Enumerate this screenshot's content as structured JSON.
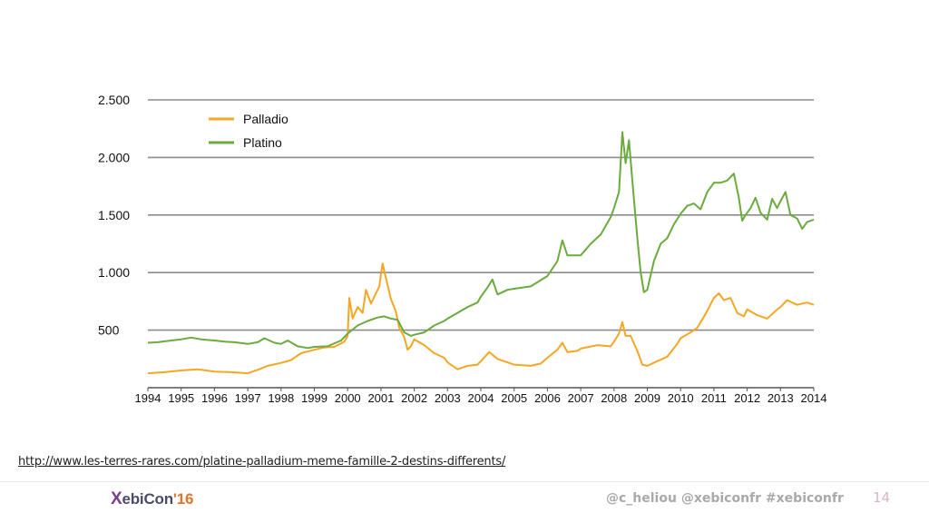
{
  "chart_data": {
    "type": "line",
    "yticks": [
      "2.500",
      "2.000",
      "1.500",
      "1.000",
      "500"
    ],
    "ytick_values": [
      2500,
      2000,
      1500,
      1000,
      500
    ],
    "ylim": [
      0,
      2500
    ],
    "xlim": [
      1994,
      2014
    ],
    "xticks": [
      "1994",
      "1995",
      "1996",
      "1997",
      "1998",
      "1999",
      "2000",
      "2001",
      "2002",
      "2003",
      "2004",
      "2005",
      "2006",
      "2007",
      "2008",
      "2009",
      "2010",
      "2011",
      "2012",
      "2013",
      "2014"
    ],
    "grid": true,
    "legend_position": "top-left",
    "series": [
      {
        "name": "Palladio",
        "color": "#f5a623",
        "points": [
          [
            1994.0,
            125
          ],
          [
            1994.5,
            135
          ],
          [
            1995.0,
            150
          ],
          [
            1995.5,
            160
          ],
          [
            1996.0,
            140
          ],
          [
            1996.5,
            135
          ],
          [
            1997.0,
            125
          ],
          [
            1997.3,
            155
          ],
          [
            1997.6,
            190
          ],
          [
            1998.0,
            215
          ],
          [
            1998.3,
            240
          ],
          [
            1998.6,
            300
          ],
          [
            1999.0,
            330
          ],
          [
            1999.3,
            350
          ],
          [
            1999.6,
            355
          ],
          [
            1999.9,
            400
          ],
          [
            2000.0,
            450
          ],
          [
            2000.05,
            780
          ],
          [
            2000.15,
            600
          ],
          [
            2000.3,
            700
          ],
          [
            2000.45,
            650
          ],
          [
            2000.55,
            850
          ],
          [
            2000.7,
            730
          ],
          [
            2000.85,
            820
          ],
          [
            2000.95,
            880
          ],
          [
            2001.05,
            1080
          ],
          [
            2001.15,
            950
          ],
          [
            2001.3,
            770
          ],
          [
            2001.45,
            660
          ],
          [
            2001.55,
            520
          ],
          [
            2001.7,
            440
          ],
          [
            2001.8,
            330
          ],
          [
            2001.9,
            360
          ],
          [
            2002.0,
            420
          ],
          [
            2002.3,
            370
          ],
          [
            2002.6,
            300
          ],
          [
            2002.9,
            260
          ],
          [
            2003.0,
            220
          ],
          [
            2003.3,
            160
          ],
          [
            2003.6,
            190
          ],
          [
            2003.9,
            200
          ],
          [
            2004.0,
            230
          ],
          [
            2004.25,
            310
          ],
          [
            2004.5,
            250
          ],
          [
            2004.8,
            220
          ],
          [
            2005.0,
            200
          ],
          [
            2005.5,
            190
          ],
          [
            2005.8,
            210
          ],
          [
            2006.0,
            260
          ],
          [
            2006.3,
            330
          ],
          [
            2006.45,
            390
          ],
          [
            2006.6,
            310
          ],
          [
            2006.9,
            320
          ],
          [
            2007.0,
            340
          ],
          [
            2007.5,
            370
          ],
          [
            2007.9,
            360
          ],
          [
            2008.0,
            400
          ],
          [
            2008.15,
            470
          ],
          [
            2008.25,
            570
          ],
          [
            2008.35,
            450
          ],
          [
            2008.5,
            450
          ],
          [
            2008.7,
            320
          ],
          [
            2008.85,
            200
          ],
          [
            2009.0,
            190
          ],
          [
            2009.3,
            230
          ],
          [
            2009.6,
            270
          ],
          [
            2009.9,
            380
          ],
          [
            2010.0,
            430
          ],
          [
            2010.3,
            480
          ],
          [
            2010.5,
            520
          ],
          [
            2010.75,
            640
          ],
          [
            2011.0,
            780
          ],
          [
            2011.15,
            820
          ],
          [
            2011.3,
            760
          ],
          [
            2011.5,
            780
          ],
          [
            2011.7,
            650
          ],
          [
            2011.9,
            620
          ],
          [
            2012.0,
            680
          ],
          [
            2012.3,
            630
          ],
          [
            2012.6,
            600
          ],
          [
            2012.9,
            680
          ],
          [
            2013.0,
            700
          ],
          [
            2013.2,
            760
          ],
          [
            2013.5,
            720
          ],
          [
            2013.8,
            740
          ],
          [
            2014.0,
            720
          ]
        ]
      },
      {
        "name": "Platino",
        "color": "#6aab3e",
        "points": [
          [
            1994.0,
            390
          ],
          [
            1994.3,
            395
          ],
          [
            1994.7,
            410
          ],
          [
            1995.0,
            420
          ],
          [
            1995.3,
            435
          ],
          [
            1995.6,
            420
          ],
          [
            1996.0,
            410
          ],
          [
            1996.3,
            400
          ],
          [
            1996.6,
            395
          ],
          [
            1997.0,
            380
          ],
          [
            1997.3,
            395
          ],
          [
            1997.5,
            430
          ],
          [
            1997.8,
            390
          ],
          [
            1998.0,
            380
          ],
          [
            1998.2,
            410
          ],
          [
            1998.5,
            360
          ],
          [
            1998.8,
            345
          ],
          [
            1999.0,
            355
          ],
          [
            1999.4,
            360
          ],
          [
            1999.8,
            410
          ],
          [
            2000.0,
            470
          ],
          [
            2000.3,
            540
          ],
          [
            2000.6,
            580
          ],
          [
            2000.9,
            610
          ],
          [
            2001.1,
            620
          ],
          [
            2001.3,
            600
          ],
          [
            2001.5,
            590
          ],
          [
            2001.7,
            480
          ],
          [
            2001.9,
            450
          ],
          [
            2002.0,
            460
          ],
          [
            2002.3,
            480
          ],
          [
            2002.6,
            540
          ],
          [
            2002.9,
            580
          ],
          [
            2003.0,
            600
          ],
          [
            2003.3,
            650
          ],
          [
            2003.6,
            700
          ],
          [
            2003.9,
            740
          ],
          [
            2004.0,
            790
          ],
          [
            2004.2,
            870
          ],
          [
            2004.35,
            940
          ],
          [
            2004.5,
            810
          ],
          [
            2004.8,
            850
          ],
          [
            2005.0,
            860
          ],
          [
            2005.5,
            880
          ],
          [
            2006.0,
            970
          ],
          [
            2006.3,
            1100
          ],
          [
            2006.45,
            1280
          ],
          [
            2006.6,
            1150
          ],
          [
            2006.9,
            1150
          ],
          [
            2007.0,
            1150
          ],
          [
            2007.3,
            1250
          ],
          [
            2007.6,
            1330
          ],
          [
            2007.9,
            1480
          ],
          [
            2008.0,
            1560
          ],
          [
            2008.15,
            1700
          ],
          [
            2008.25,
            2220
          ],
          [
            2008.35,
            1950
          ],
          [
            2008.45,
            2150
          ],
          [
            2008.55,
            1800
          ],
          [
            2008.7,
            1300
          ],
          [
            2008.8,
            1000
          ],
          [
            2008.9,
            830
          ],
          [
            2009.0,
            850
          ],
          [
            2009.2,
            1100
          ],
          [
            2009.4,
            1250
          ],
          [
            2009.6,
            1300
          ],
          [
            2009.8,
            1420
          ],
          [
            2010.0,
            1510
          ],
          [
            2010.2,
            1580
          ],
          [
            2010.4,
            1600
          ],
          [
            2010.6,
            1550
          ],
          [
            2010.8,
            1700
          ],
          [
            2011.0,
            1780
          ],
          [
            2011.2,
            1780
          ],
          [
            2011.4,
            1800
          ],
          [
            2011.6,
            1860
          ],
          [
            2011.75,
            1650
          ],
          [
            2011.85,
            1450
          ],
          [
            2011.95,
            1500
          ],
          [
            2012.1,
            1560
          ],
          [
            2012.25,
            1650
          ],
          [
            2012.4,
            1520
          ],
          [
            2012.6,
            1460
          ],
          [
            2012.75,
            1640
          ],
          [
            2012.9,
            1560
          ],
          [
            2013.0,
            1620
          ],
          [
            2013.15,
            1700
          ],
          [
            2013.3,
            1500
          ],
          [
            2013.5,
            1470
          ],
          [
            2013.65,
            1380
          ],
          [
            2013.8,
            1440
          ],
          [
            2014.0,
            1460
          ]
        ]
      }
    ]
  },
  "source_url": "http://www.les-terres-rares.com/platine-palladium-meme-famille-2-destins-differents/",
  "footer": {
    "logo_x": "X",
    "logo_rest": "ebiCon",
    "logo_year": "'16",
    "handles": "@c_heliou @xebiconfr  #xebiconfr",
    "page_number": "14"
  }
}
